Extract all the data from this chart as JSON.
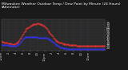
{
  "title": "Milwaukee Weather Outdoor Temp / Dew Point by Minute (24 Hours) (Alternate)",
  "title_fontsize": 3.2,
  "bg_color": "#1a1a1a",
  "plot_bg_color": "#2a2a2a",
  "grid_color": "#555577",
  "temp_color": "#ff3333",
  "dew_color": "#3333ff",
  "ylim": [
    15,
    82
  ],
  "yticks": [
    20,
    25,
    30,
    35,
    40,
    45,
    50,
    55,
    60,
    65,
    70,
    75
  ],
  "ytick_fontsize": 3.0,
  "xtick_fontsize": 2.8,
  "tick_color": "#cccccc",
  "temp_data": [
    35,
    34,
    33,
    33,
    32,
    32,
    31,
    31,
    31,
    30,
    30,
    30,
    30,
    30,
    30,
    29,
    29,
    29,
    29,
    30,
    30,
    31,
    32,
    33,
    35,
    37,
    40,
    43,
    46,
    49,
    52,
    55,
    57,
    59,
    61,
    63,
    64,
    65,
    66,
    67,
    68,
    69,
    70,
    71,
    72,
    72,
    73,
    73,
    73,
    74,
    74,
    74,
    73,
    73,
    72,
    72,
    71,
    70,
    69,
    68,
    67,
    65,
    63,
    61,
    59,
    57,
    55,
    53,
    51,
    49,
    47,
    45,
    43,
    41,
    39,
    37,
    36,
    35,
    34,
    33,
    32,
    32,
    31,
    31,
    30,
    30,
    30,
    29,
    29,
    29,
    28,
    28,
    28,
    27,
    27,
    27,
    26,
    26,
    26,
    26,
    26,
    26,
    26,
    26,
    25,
    25,
    25,
    25,
    25,
    25,
    25,
    25,
    24,
    24,
    24,
    24,
    24,
    24,
    24,
    24,
    24,
    24,
    24,
    24,
    24,
    24,
    24,
    24,
    24,
    24,
    24,
    24,
    24,
    24,
    24,
    24,
    24,
    24,
    24,
    24,
    24,
    24,
    24,
    24
  ],
  "dew_data": [
    28,
    27,
    27,
    27,
    27,
    26,
    26,
    26,
    26,
    26,
    26,
    26,
    25,
    25,
    25,
    25,
    25,
    25,
    25,
    25,
    25,
    26,
    27,
    28,
    29,
    30,
    32,
    34,
    36,
    38,
    40,
    42,
    43,
    44,
    44,
    44,
    44,
    44,
    44,
    44,
    44,
    44,
    44,
    44,
    44,
    44,
    44,
    44,
    44,
    44,
    43,
    43,
    43,
    43,
    43,
    43,
    43,
    43,
    43,
    42,
    42,
    42,
    42,
    42,
    41,
    40,
    39,
    38,
    37,
    36,
    35,
    33,
    32,
    31,
    29,
    28,
    27,
    26,
    25,
    24,
    23,
    22,
    22,
    21,
    21,
    20,
    20,
    19,
    19,
    19,
    19,
    18,
    18,
    18,
    18,
    18,
    18,
    18,
    18,
    18,
    18,
    18,
    18,
    18,
    18,
    18,
    18,
    18,
    18,
    17,
    17,
    17,
    17,
    17,
    17,
    17,
    17,
    17,
    17,
    17,
    17,
    17,
    17,
    17,
    17,
    17,
    17,
    17,
    17,
    17,
    17,
    17,
    17,
    17,
    17,
    17,
    17,
    17,
    17,
    17,
    17,
    17,
    17,
    17
  ],
  "xtick_labels": [
    "12am",
    "2",
    "4",
    "6",
    "8",
    "10",
    "12pm",
    "2",
    "4",
    "6",
    "8",
    "10",
    "12am"
  ],
  "xtick_positions": [
    0,
    10,
    20,
    30,
    40,
    50,
    60,
    70,
    80,
    90,
    100,
    110,
    120
  ],
  "n_points": 144
}
